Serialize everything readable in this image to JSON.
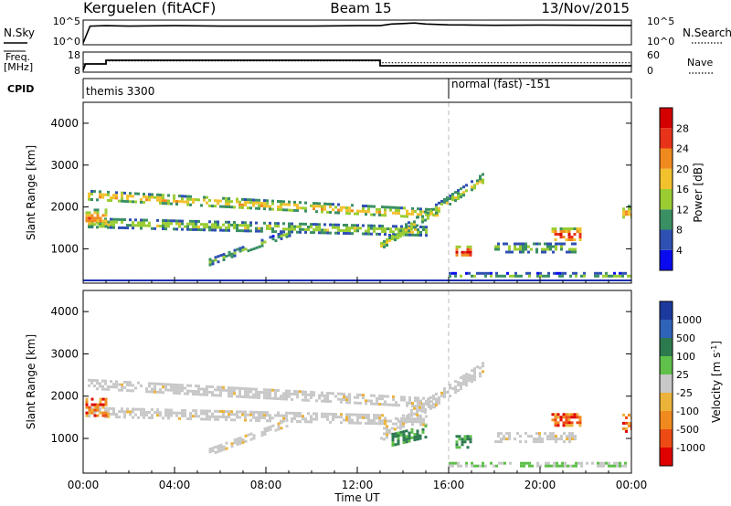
{
  "header": {
    "station": "Kerguelen (fitACF)",
    "beam": "Beam 15",
    "date": "13/Nov/2015"
  },
  "noise_panel": {
    "left_label": "N.Sky",
    "left_ticks": [
      "10^5",
      "10^0"
    ],
    "right_label": "N.Search",
    "right_ticks": [
      "10^5",
      "10^0"
    ],
    "nsky_trace": [
      [
        0,
        0
      ],
      [
        0.3,
        0.8
      ],
      [
        1,
        0.82
      ],
      [
        2,
        0.8
      ],
      [
        4,
        0.82
      ],
      [
        6,
        0.8
      ],
      [
        8,
        0.8
      ],
      [
        10,
        0.8
      ],
      [
        12,
        0.82
      ],
      [
        13,
        0.82
      ],
      [
        13.5,
        0.9
      ],
      [
        14,
        0.92
      ],
      [
        14.5,
        0.95
      ],
      [
        15,
        0.9
      ],
      [
        16,
        0.86
      ],
      [
        17,
        0.85
      ],
      [
        18,
        0.84
      ],
      [
        20,
        0.85
      ],
      [
        22,
        0.84
      ],
      [
        24,
        0.83
      ]
    ]
  },
  "freq_panel": {
    "left_label": "Freq.",
    "left_unit": "[MHz]",
    "left_ticks": [
      "18",
      "8"
    ],
    "left_range": [
      8,
      18
    ],
    "right_label": "Nave",
    "right_ticks": [
      "60",
      "0"
    ],
    "right_range": [
      0,
      60
    ],
    "freq_trace": [
      [
        0,
        8.6
      ],
      [
        0.1,
        12
      ],
      [
        1,
        12
      ],
      [
        1,
        14
      ],
      [
        13,
        14
      ],
      [
        13,
        11
      ],
      [
        24,
        11
      ]
    ],
    "nave_trace": [
      [
        0,
        24
      ],
      [
        1,
        24
      ],
      [
        1,
        34
      ],
      [
        13,
        34
      ],
      [
        13,
        28
      ],
      [
        24,
        28
      ]
    ]
  },
  "cpid_panel": {
    "label": "CPID",
    "modes": [
      {
        "start_hour": 0,
        "text": "themis 3300"
      },
      {
        "start_hour": 16,
        "text": "normal (fast) -151"
      }
    ]
  },
  "chart_data": [
    {
      "type": "heatmap",
      "name": "power",
      "ylabel": "Slant Range [km]",
      "xlabel": "",
      "xlim": [
        0,
        24
      ],
      "ylim": [
        180,
        4500
      ],
      "yticks": [
        "1000",
        "2000",
        "3000",
        "4000"
      ],
      "colorbar": {
        "label": "Power [dB]",
        "tick_labels": [
          "4",
          "8",
          "12",
          "16",
          "20",
          "24",
          "28"
        ],
        "range": [
          0,
          32
        ],
        "colors": [
          "#0a0aef",
          "#2f50b3",
          "#3a8f63",
          "#9acd32",
          "#f2c12e",
          "#f08a1e",
          "#e8321a",
          "#d40000"
        ]
      },
      "echo_bands": [
        {
          "x": [
            0.2,
            15.5
          ],
          "y_start": 2300,
          "y_end": 1850,
          "thickness": 220,
          "level": 18
        },
        {
          "x": [
            0.2,
            15
          ],
          "y_start": 1650,
          "y_end": 1450,
          "thickness": 200,
          "level": 14
        },
        {
          "x": [
            0.1,
            1.0
          ],
          "y_start": 1750,
          "y_end": 1750,
          "thickness": 420,
          "level": 20
        },
        {
          "x": [
            13,
            17.5
          ],
          "y_start": 1100,
          "y_end": 2700,
          "thickness": 260,
          "level": 14
        },
        {
          "x": [
            16.3,
            17
          ],
          "y_start": 950,
          "y_end": 950,
          "thickness": 260,
          "level": 27
        },
        {
          "x": [
            18,
            21.5
          ],
          "y_start": 1050,
          "y_end": 1050,
          "thickness": 200,
          "level": 13
        },
        {
          "x": [
            20.5,
            21.8
          ],
          "y_start": 1350,
          "y_end": 1350,
          "thickness": 320,
          "level": 26
        },
        {
          "x": [
            16,
            24
          ],
          "y_start": 380,
          "y_end": 380,
          "thickness": 90,
          "level": 10
        },
        {
          "x": [
            5.5,
            9
          ],
          "y_start": 700,
          "y_end": 1400,
          "thickness": 160,
          "level": 12
        },
        {
          "x": [
            23.6,
            24
          ],
          "y_start": 1900,
          "y_end": 1900,
          "thickness": 300,
          "level": 20
        }
      ]
    },
    {
      "type": "heatmap",
      "name": "velocity",
      "ylabel": "Slant Range [km]",
      "xlabel": "Time UT",
      "xlim": [
        0,
        24
      ],
      "ylim": [
        180,
        4500
      ],
      "x_tick_labels": [
        "00:00",
        "04:00",
        "08:00",
        "12:00",
        "16:00",
        "20:00",
        "00:00"
      ],
      "yticks": [
        "1000",
        "2000",
        "3000",
        "4000"
      ],
      "colorbar": {
        "label": "Velocity [m s^-1]",
        "tick_labels": [
          "1000",
          "500",
          "100",
          "25",
          "-25",
          "-100",
          "-500",
          "-1000"
        ],
        "colors": [
          "#1c3a9e",
          "#2f63b8",
          "#2d7a4f",
          "#5fc04a",
          "#c8c8c8",
          "#ebb33a",
          "#f08a1e",
          "#ee4a14",
          "#e00000"
        ]
      },
      "echo_bands": [
        {
          "x": [
            0.2,
            15.5
          ],
          "y_start": 2300,
          "y_end": 1850,
          "thickness": 220,
          "class": "ground"
        },
        {
          "x": [
            0.2,
            15
          ],
          "y_start": 1650,
          "y_end": 1450,
          "thickness": 200,
          "class": "ground"
        },
        {
          "x": [
            0.1,
            1.0
          ],
          "y_start": 1750,
          "y_end": 1750,
          "thickness": 420,
          "class": "negative"
        },
        {
          "x": [
            13,
            17.5
          ],
          "y_start": 1100,
          "y_end": 2700,
          "thickness": 260,
          "class": "ground"
        },
        {
          "x": [
            13.5,
            15
          ],
          "y_start": 1000,
          "y_end": 1200,
          "thickness": 260,
          "class": "positive"
        },
        {
          "x": [
            16.3,
            17
          ],
          "y_start": 950,
          "y_end": 950,
          "thickness": 260,
          "class": "positive"
        },
        {
          "x": [
            18,
            21.5
          ],
          "y_start": 1050,
          "y_end": 1050,
          "thickness": 200,
          "class": "ground"
        },
        {
          "x": [
            20.5,
            21.8
          ],
          "y_start": 1450,
          "y_end": 1450,
          "thickness": 300,
          "class": "negative"
        },
        {
          "x": [
            16,
            24
          ],
          "y_start": 380,
          "y_end": 380,
          "thickness": 90,
          "class": "weak_positive"
        },
        {
          "x": [
            5.5,
            9
          ],
          "y_start": 700,
          "y_end": 1400,
          "thickness": 160,
          "class": "ground"
        },
        {
          "x": [
            23.6,
            24
          ],
          "y_start": 1400,
          "y_end": 1400,
          "thickness": 500,
          "class": "negative"
        }
      ]
    }
  ]
}
